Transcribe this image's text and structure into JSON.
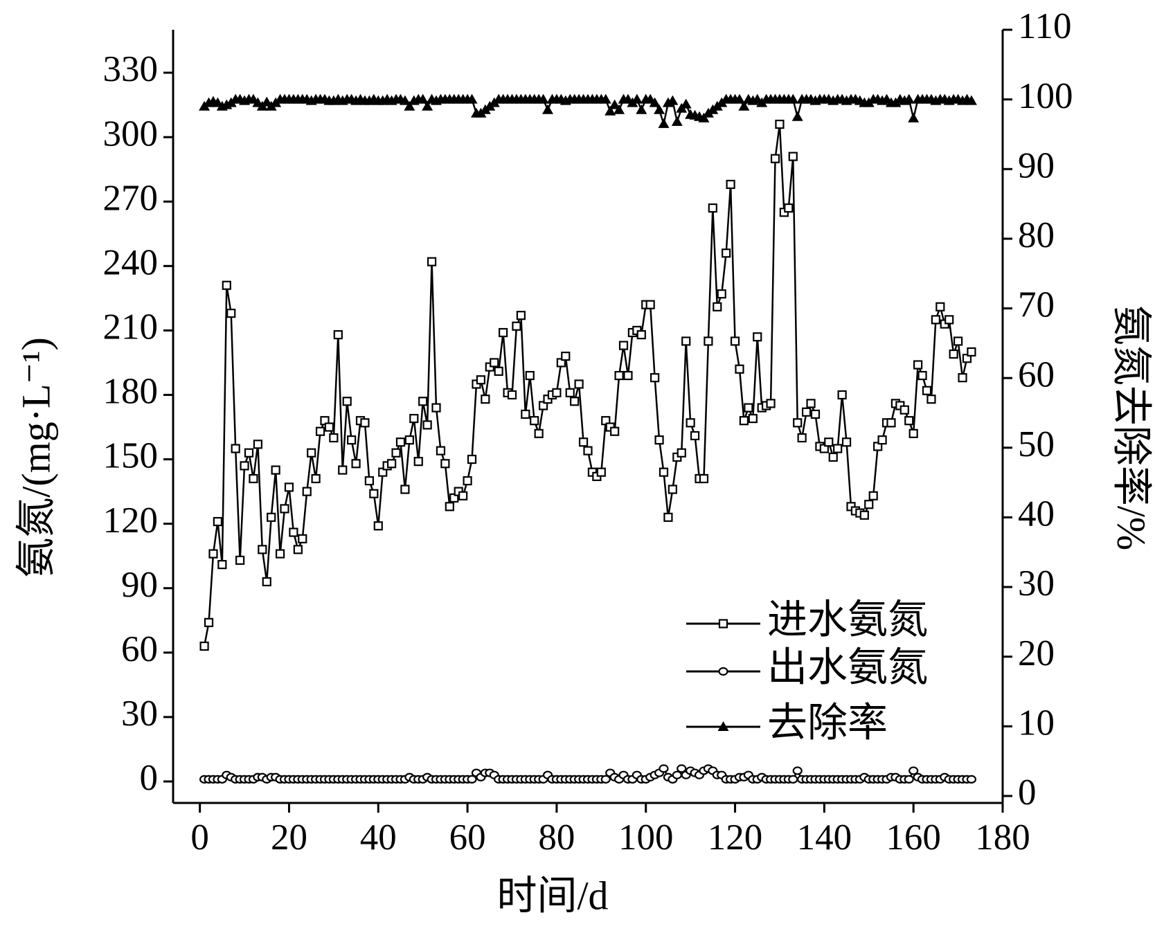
{
  "chart_data": {
    "type": "line",
    "x_label": "时间/d",
    "y_label": "氨氮/(mg·L⁻¹)",
    "y2_label": "氨氮去除率/%",
    "xlim": [
      -6,
      180
    ],
    "xticks": [
      0,
      20,
      40,
      60,
      80,
      100,
      120,
      140,
      160,
      180
    ],
    "ylim": [
      -10,
      350
    ],
    "yticks": [
      0,
      30,
      60,
      90,
      120,
      150,
      180,
      210,
      240,
      270,
      300,
      330
    ],
    "y2lim": [
      -1,
      110
    ],
    "y2ticks": [
      0,
      10,
      20,
      30,
      40,
      50,
      60,
      70,
      80,
      90,
      100,
      110
    ],
    "legend": "lower right",
    "x": [
      1,
      2,
      3,
      4,
      5,
      6,
      7,
      8,
      9,
      10,
      11,
      12,
      13,
      14,
      15,
      16,
      17,
      18,
      19,
      20,
      21,
      22,
      23,
      24,
      25,
      26,
      27,
      28,
      29,
      30,
      31,
      32,
      33,
      34,
      35,
      36,
      37,
      38,
      39,
      40,
      41,
      42,
      43,
      44,
      45,
      46,
      47,
      48,
      49,
      50,
      51,
      52,
      53,
      54,
      55,
      56,
      57,
      58,
      59,
      60,
      61,
      62,
      63,
      64,
      65,
      66,
      67,
      68,
      69,
      70,
      71,
      72,
      73,
      74,
      75,
      76,
      77,
      78,
      79,
      80,
      81,
      82,
      83,
      84,
      85,
      86,
      87,
      88,
      89,
      90,
      91,
      92,
      93,
      94,
      95,
      96,
      97,
      98,
      99,
      100,
      101,
      102,
      103,
      104,
      105,
      106,
      107,
      108,
      109,
      110,
      111,
      112,
      113,
      114,
      115,
      116,
      117,
      118,
      119,
      120,
      121,
      122,
      123,
      124,
      125,
      126,
      127,
      128,
      129,
      130,
      131,
      132,
      133,
      134,
      135,
      136,
      137,
      138,
      139,
      140,
      141,
      142,
      143,
      144,
      145,
      146,
      147,
      148,
      149,
      150,
      151,
      152,
      153,
      154,
      155,
      156,
      157,
      158,
      159,
      160,
      161,
      162,
      163,
      164,
      165,
      166,
      167,
      168,
      169,
      170,
      171,
      172,
      173
    ],
    "series": [
      {
        "name": "进水氨氮",
        "color": "#000000",
        "marker": "square",
        "values": [
          63,
          74,
          106,
          121,
          101,
          231,
          218,
          155,
          103,
          147,
          153,
          141,
          157,
          108,
          93,
          123,
          145,
          106,
          127,
          137,
          116,
          108,
          113,
          135,
          153,
          141,
          163,
          168,
          165,
          160,
          208,
          145,
          177,
          159,
          148,
          168,
          167,
          140,
          134,
          119,
          144,
          147,
          148,
          153,
          158,
          136,
          159,
          169,
          149,
          177,
          166,
          242,
          174,
          154,
          148,
          128,
          132,
          135,
          133,
          140,
          150,
          185,
          187,
          178,
          193,
          195,
          191,
          209,
          181,
          180,
          212,
          217,
          171,
          189,
          168,
          162,
          175,
          178,
          180,
          181,
          195,
          198,
          181,
          177,
          185,
          158,
          154,
          144,
          142,
          144,
          168,
          165,
          163,
          189,
          203,
          189,
          209,
          210,
          208,
          222,
          222,
          188,
          159,
          144,
          123,
          136,
          151,
          153,
          205,
          167,
          161,
          141,
          141,
          205,
          267,
          221,
          227,
          246,
          278,
          205,
          192,
          168,
          174,
          169,
          207,
          174,
          175,
          176,
          290,
          306,
          265,
          267,
          291,
          167,
          160,
          172,
          176,
          171,
          156,
          155,
          158,
          151,
          155,
          180,
          158,
          128,
          126,
          125,
          124,
          129,
          133,
          156,
          159,
          167,
          167,
          176,
          175,
          173,
          168,
          162,
          194,
          189,
          182,
          178,
          215,
          221,
          213,
          215,
          199,
          205,
          188,
          197,
          200
        ]
      },
      {
        "name": "出水氨氮",
        "color": "#000000",
        "marker": "circle",
        "values": [
          1,
          1,
          1,
          1,
          1,
          3,
          2,
          1,
          1,
          1,
          1,
          1,
          2,
          2,
          1,
          2,
          2,
          1,
          1,
          1,
          1,
          1,
          1,
          1,
          1,
          1,
          1,
          1,
          1,
          1,
          1,
          1,
          1,
          1,
          1,
          1,
          1,
          1,
          1,
          1,
          1,
          1,
          1,
          1,
          1,
          1,
          2,
          1,
          1,
          1,
          2,
          1,
          1,
          1,
          1,
          1,
          1,
          1,
          1,
          1,
          1,
          4,
          2,
          4,
          4,
          3,
          1,
          1,
          1,
          1,
          1,
          1,
          1,
          1,
          1,
          1,
          1,
          3,
          1,
          1,
          1,
          1,
          1,
          1,
          1,
          1,
          1,
          1,
          1,
          1,
          1,
          4,
          2,
          1,
          3,
          1,
          1,
          3,
          1,
          1,
          2,
          3,
          4,
          6,
          2,
          1,
          3,
          6,
          3,
          5,
          4,
          3,
          5,
          6,
          5,
          3,
          3,
          1,
          1,
          1,
          2,
          2,
          3,
          1,
          1,
          2,
          1,
          1,
          1,
          1,
          1,
          1,
          1,
          5,
          1,
          1,
          1,
          1,
          1,
          1,
          1,
          1,
          1,
          1,
          1,
          1,
          1,
          1,
          2,
          1,
          1,
          1,
          1,
          1,
          2,
          2,
          1,
          1,
          1,
          5,
          2,
          1,
          1,
          1,
          1,
          1,
          2,
          1,
          1,
          1,
          1,
          1,
          1
        ]
      },
      {
        "name": "去除率",
        "color": "#000000",
        "marker": "triangle",
        "axis": "y2",
        "values": [
          99,
          99.5,
          99.7,
          99.5,
          99,
          99.2,
          99.5,
          100,
          100,
          99.8,
          100,
          100,
          99.5,
          99,
          99.6,
          99,
          99.5,
          100,
          100,
          100,
          100,
          100,
          100,
          100,
          99.8,
          100,
          100,
          100,
          99.8,
          99.8,
          100,
          99.8,
          100,
          100,
          99.8,
          100,
          99.8,
          99.8,
          100,
          99.8,
          99.8,
          100,
          99.8,
          100,
          100,
          99.8,
          99,
          99.8,
          100,
          100,
          99,
          100,
          99.8,
          100,
          100,
          100,
          100,
          100,
          100,
          100,
          100,
          98,
          98,
          98.5,
          99,
          99.5,
          100,
          100,
          100,
          100,
          100,
          100,
          100,
          100,
          100,
          100,
          100,
          98.5,
          100,
          100,
          100,
          99.8,
          100,
          100,
          100,
          100,
          100,
          100,
          100,
          100,
          100,
          98.3,
          99.2,
          98.5,
          100,
          100,
          99.5,
          100,
          98.5,
          100,
          100,
          99.5,
          98.5,
          96.5,
          99.5,
          99.8,
          96.8,
          98.7,
          99.3,
          97.8,
          97.7,
          97.5,
          97.3,
          98,
          98.5,
          99,
          99.5,
          100,
          100,
          100,
          100,
          99,
          100,
          99.8,
          100,
          99.5,
          100,
          100,
          100,
          100,
          100,
          100,
          100,
          97.5,
          100,
          100,
          100,
          99.8,
          100,
          100,
          100,
          99.8,
          100,
          100,
          99.8,
          100,
          100,
          99.8,
          99.5,
          99.5,
          100,
          100,
          99.8,
          100,
          99.5,
          99.5,
          100,
          99.8,
          100,
          97.3,
          100,
          100,
          100,
          100,
          99.8,
          100,
          100,
          99.8,
          100,
          100,
          99.8,
          100,
          99.8
        ]
      }
    ]
  }
}
